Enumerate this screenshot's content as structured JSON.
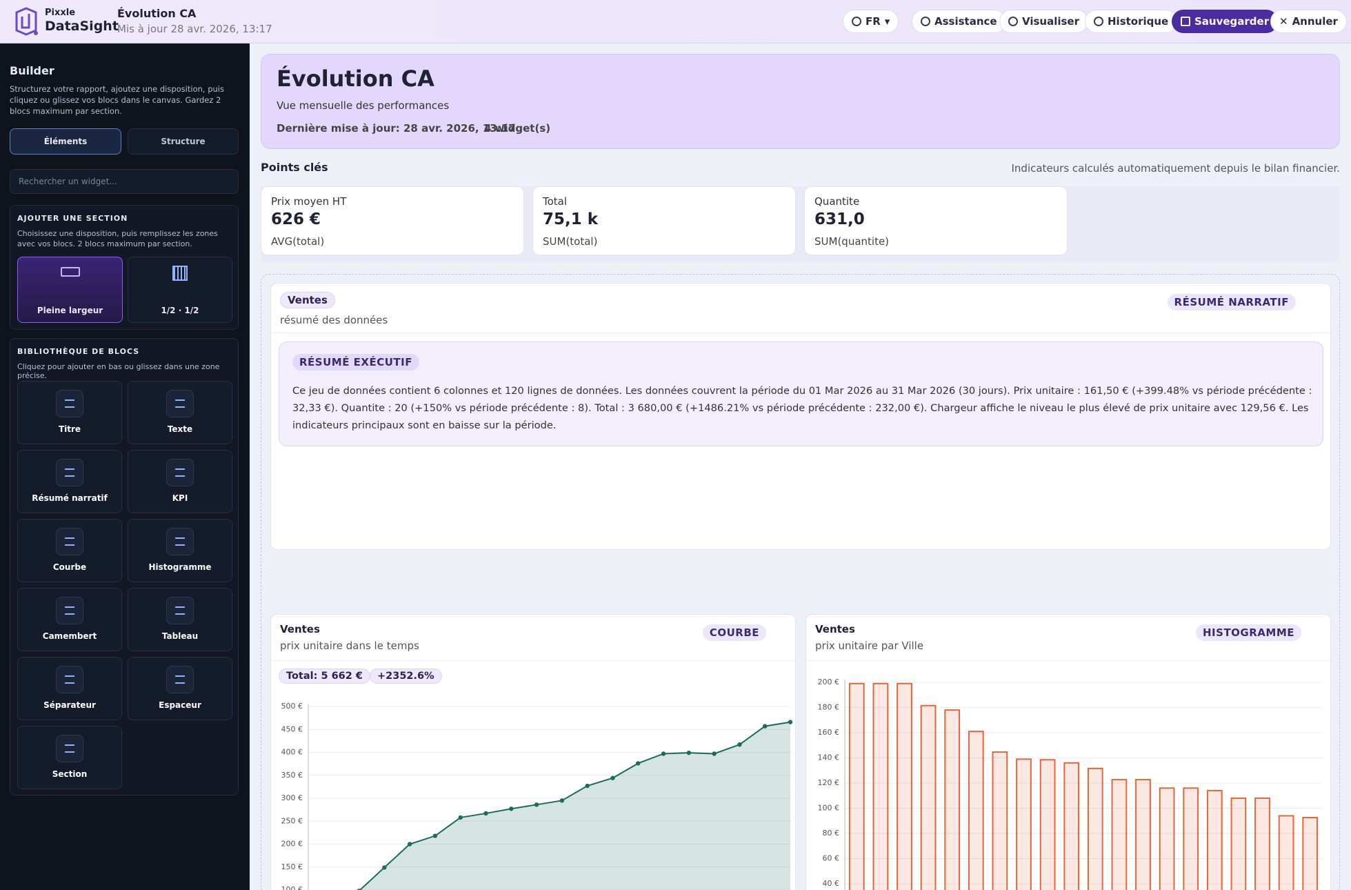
{
  "header": {
    "brand": "Pixxle",
    "product": "DataSight",
    "title": "Évolution CA",
    "updated": "Mis à jour 28 avr. 2026, 13:17"
  },
  "toolbar": [
    "FR",
    "Assistance",
    "Visualiser",
    "Historique",
    "Sauvegarder",
    "Annuler"
  ],
  "sidebar": {
    "title": "Builder",
    "description": "Structurez votre rapport, ajoutez une disposition, puis cliquez ou glissez vos blocs dans le canvas. Gardez 2 blocs maximum par section.",
    "tabs": [
      "Éléments",
      "Structure"
    ],
    "search_placeholder": "Rechercher un widget...",
    "add_section": {
      "heading": "AJOUTER UNE SECTION",
      "description": "Choisissez une disposition, puis remplissez les zones avec vos blocs. 2 blocs maximum par section.",
      "layouts": [
        "Pleine largeur",
        "1/2 · 1/2"
      ]
    },
    "library": {
      "heading": "BIBLIOTHÈQUE DE BLOCS",
      "description": "Cliquez pour ajouter en bas ou glissez dans une zone précise.",
      "blocks": [
        "Titre",
        "Texte",
        "Résumé narratif",
        "KPI",
        "Courbe",
        "Histogramme",
        "Camembert",
        "Tableau",
        "Séparateur",
        "Espaceur",
        "Section"
      ]
    }
  },
  "report": {
    "title": "Évolution CA",
    "subtitle": "Vue mensuelle des performances",
    "updated": "Dernière mise à jour: 28 avr. 2026, 13:17",
    "widgets": "4 widget(s)"
  },
  "key_points": {
    "title": "Points clés",
    "note": "Indicateurs calculés automatiquement depuis le bilan financier.",
    "kpis": [
      {
        "label": "Prix moyen HT",
        "value": "626 €",
        "formula": "AVG(total)"
      },
      {
        "label": "Total",
        "value": "75,1 k",
        "formula": "SUM(total)"
      },
      {
        "label": "Quantite",
        "value": "631,0",
        "formula": "SUM(quantite)"
      }
    ]
  },
  "narrative": {
    "tag": "Ventes",
    "subtitle": "résumé des données",
    "badge": "RÉSUMÉ NARRATIF",
    "summary_badge": "RÉSUMÉ EXÉCUTIF",
    "text": "Ce jeu de données contient 6 colonnes et 120 lignes de données. Les données couvrent la période du 01 Mar 2026 au 31 Mar 2026 (30 jours). Prix  unitaire : 161,50 € (+399.48% vs période précédente : 32,33 €). Quantite : 20 (+150% vs période précédente : 8). Total : 3 680,00 € (+1486.21% vs période précédente : 232,00 €). Chargeur affiche le niveau le plus élevé de prix  unitaire avec 129,56 €. Les indicateurs principaux sont en baisse sur la période."
  },
  "chart_data": [
    {
      "type": "line",
      "title": "Ventes",
      "subtitle": "prix unitaire dans le temps",
      "badge": "COURBE",
      "chips": [
        "Total: 5 662 €",
        "+2352.6%"
      ],
      "categories": [
        null,
        null,
        null,
        null,
        null,
        null,
        null,
        null,
        null,
        null,
        null,
        null,
        null,
        null,
        null,
        null,
        null,
        null,
        null,
        null
      ],
      "values": [
        null,
        null,
        98,
        149,
        200,
        218,
        258,
        267,
        277,
        286,
        295,
        327,
        344,
        376,
        397,
        399,
        397,
        417,
        457,
        466
      ],
      "color": "#1d6b5c",
      "ylim": [
        100,
        500
      ],
      "yticks": [
        {
          "value": 100,
          "label": "100 €"
        },
        {
          "value": 150,
          "label": "150 €"
        },
        {
          "value": 200,
          "label": "200 €"
        },
        {
          "value": 250,
          "label": "250 €"
        },
        {
          "value": 300,
          "label": "300 €"
        },
        {
          "value": 350,
          "label": "350 €"
        },
        {
          "value": 400,
          "label": "400 €"
        },
        {
          "value": 450,
          "label": "450 €"
        },
        {
          "value": 500,
          "label": "500 €"
        }
      ],
      "grid": true
    },
    {
      "type": "bar",
      "title": "Ventes",
      "subtitle": "prix unitaire par Ville",
      "badge": "HISTOGRAMME",
      "categories": [
        null,
        null,
        null,
        null,
        null,
        null,
        null,
        null,
        null,
        null,
        null,
        null,
        null,
        null,
        null,
        null,
        null,
        null,
        null,
        null
      ],
      "values": [
        199,
        199,
        199,
        181.5,
        178,
        161,
        144.6,
        139,
        138.5,
        136,
        131.6,
        122.7,
        122.7,
        116,
        116,
        114,
        108,
        108,
        94,
        92.6
      ],
      "color": "#e8643a",
      "ylim": [
        40,
        200
      ],
      "yticks": [
        {
          "value": 40,
          "label": "40 €"
        },
        {
          "value": 60,
          "label": "60 €"
        },
        {
          "value": 80,
          "label": "80 €"
        },
        {
          "value": 100,
          "label": "100 €"
        },
        {
          "value": 120,
          "label": "120 €"
        },
        {
          "value": 140,
          "label": "140 €"
        },
        {
          "value": 160,
          "label": "160 €"
        },
        {
          "value": 180,
          "label": "180 €"
        },
        {
          "value": 200,
          "label": "200 €"
        }
      ],
      "grid": true
    }
  ]
}
